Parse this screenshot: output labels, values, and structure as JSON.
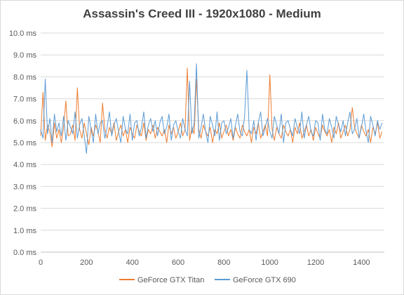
{
  "chart_data": {
    "type": "line",
    "title": "Assassin's Creed III - 1920x1080 - Medium",
    "xlabel": "",
    "ylabel": "",
    "xlim": [
      0,
      1500
    ],
    "ylim": [
      0,
      10
    ],
    "x_ticks": [
      "0",
      "200",
      "400",
      "600",
      "800",
      "1000",
      "1200",
      "1400"
    ],
    "x_tick_values": [
      0,
      200,
      400,
      600,
      800,
      1000,
      1200,
      1400
    ],
    "y_ticks": [
      "0.0 ms",
      "1.0 ms",
      "2.0 ms",
      "3.0 ms",
      "4.0 ms",
      "5.0 ms",
      "6.0 ms",
      "7.0 ms",
      "8.0 ms",
      "9.0 ms",
      "10.0 ms"
    ],
    "y_tick_values": [
      0,
      1,
      2,
      3,
      4,
      5,
      6,
      7,
      8,
      9,
      10
    ],
    "grid": "horizontal",
    "legend_position": "bottom",
    "series": [
      {
        "name": "GeForce GTX Titan",
        "color": "#ed7d31",
        "x_start": 0,
        "x_step": 10,
        "values": [
          5.3,
          7.3,
          5.1,
          5.8,
          5.5,
          4.8,
          5.9,
          5.2,
          5.6,
          5.0,
          5.7,
          6.9,
          5.3,
          5.4,
          5.8,
          5.1,
          7.5,
          5.6,
          5.2,
          5.9,
          5.4,
          4.9,
          5.7,
          5.3,
          5.8,
          5.5,
          5.0,
          6.8,
          5.6,
          5.2,
          5.7,
          5.4,
          5.9,
          5.1,
          5.5,
          5.8,
          5.3,
          5.6,
          5.0,
          5.7,
          5.4,
          5.2,
          5.8,
          5.5,
          5.3,
          5.9,
          5.1,
          5.6,
          5.4,
          5.8,
          5.2,
          5.7,
          5.5,
          5.3,
          5.6,
          5.0,
          5.8,
          5.4,
          5.7,
          5.2,
          5.5,
          5.9,
          5.3,
          5.6,
          8.4,
          5.1,
          5.7,
          5.4,
          7.9,
          5.6,
          5.2,
          5.8,
          5.5,
          5.3,
          5.7,
          5.0,
          5.6,
          5.4,
          5.9,
          5.2,
          5.5,
          5.8,
          5.3,
          5.6,
          5.1,
          5.7,
          5.4,
          5.2,
          5.8,
          5.5,
          5.3,
          5.6,
          5.0,
          5.7,
          5.4,
          5.9,
          5.2,
          5.5,
          5.8,
          5.3,
          8.1,
          5.6,
          5.1,
          5.7,
          5.4,
          5.2,
          5.8,
          5.5,
          5.3,
          5.6,
          5.0,
          5.7,
          5.4,
          5.9,
          5.2,
          5.5,
          5.8,
          5.3,
          5.6,
          5.1,
          5.7,
          5.4,
          5.2,
          5.8,
          5.5,
          5.3,
          5.6,
          5.0,
          5.7,
          5.4,
          5.9,
          5.2,
          5.5,
          5.8,
          5.3,
          5.6,
          6.6,
          5.7,
          5.4,
          5.2,
          5.8,
          5.5,
          5.3,
          5.6,
          5.0,
          5.7,
          5.4,
          5.9,
          5.2,
          5.5
        ]
      },
      {
        "name": "GeForce GTX 690",
        "color": "#5b9bd5",
        "x_start": 0,
        "x_step": 10,
        "values": [
          5.6,
          5.2,
          7.9,
          5.4,
          6.1,
          5.0,
          6.3,
          5.5,
          5.9,
          5.3,
          6.2,
          5.1,
          6.0,
          5.7,
          5.4,
          6.4,
          5.2,
          5.8,
          6.1,
          5.3,
          4.5,
          6.2,
          5.6,
          5.0,
          6.3,
          5.4,
          5.9,
          6.0,
          5.2,
          5.7,
          6.4,
          5.3,
          5.8,
          6.1,
          5.5,
          5.0,
          6.2,
          5.6,
          5.4,
          6.3,
          5.1,
          5.9,
          6.0,
          5.3,
          5.7,
          6.4,
          5.2,
          5.8,
          6.1,
          5.5,
          6.0,
          5.3,
          5.9,
          6.2,
          5.4,
          5.7,
          6.3,
          5.1,
          5.8,
          6.0,
          5.5,
          5.2,
          6.1,
          5.6,
          5.3,
          7.8,
          5.4,
          5.9,
          8.6,
          5.2,
          5.7,
          6.3,
          5.5,
          5.0,
          6.2,
          5.8,
          5.3,
          6.4,
          5.1,
          5.9,
          6.0,
          5.4,
          5.7,
          6.1,
          5.2,
          5.8,
          6.3,
          5.5,
          5.3,
          6.2,
          8.3,
          5.6,
          5.4,
          6.0,
          5.1,
          5.9,
          6.4,
          5.3,
          5.7,
          6.1,
          5.5,
          5.2,
          6.2,
          5.8,
          5.4,
          6.3,
          5.0,
          5.9,
          6.0,
          5.6,
          5.3,
          6.1,
          5.7,
          5.4,
          6.4,
          5.2,
          5.8,
          6.2,
          5.5,
          5.3,
          6.0,
          5.9,
          5.1,
          6.3,
          5.6,
          5.4,
          6.1,
          5.7,
          5.2,
          6.2,
          5.8,
          5.5,
          6.0,
          5.3,
          5.9,
          6.4,
          5.4,
          5.6,
          6.1,
          5.2,
          5.7,
          6.3,
          5.5,
          5.0,
          6.2,
          5.8,
          5.3,
          6.0,
          5.6,
          5.9
        ]
      }
    ]
  }
}
